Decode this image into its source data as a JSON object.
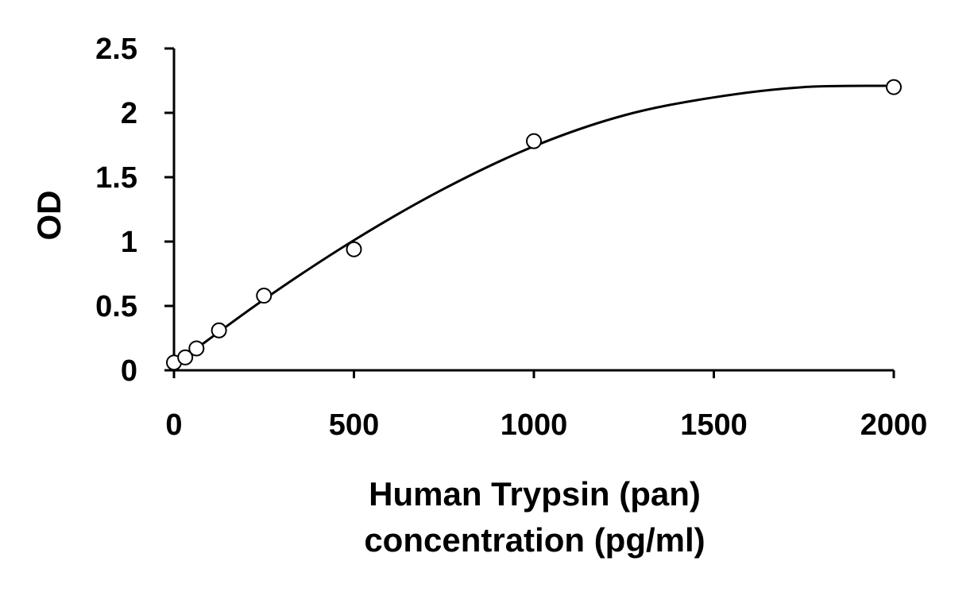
{
  "chart_data": {
    "type": "scatter",
    "title": "",
    "ylabel": "OD",
    "xlabel_lines": [
      "Human Trypsin (pan)",
      "concentration (pg/ml)"
    ],
    "xlim": [
      0,
      2000
    ],
    "ylim": [
      0,
      2.5
    ],
    "x_ticks": [
      0,
      500,
      1000,
      1500,
      2000
    ],
    "x_tick_labels": [
      "0",
      "500",
      "1000",
      "1500",
      "2000"
    ],
    "y_ticks": [
      0,
      0.5,
      1,
      1.5,
      2,
      2.5
    ],
    "y_tick_labels": [
      "0",
      "0.5",
      "1",
      "1.5",
      "2",
      "2.5"
    ],
    "grid": false,
    "legend": "none",
    "series": [
      {
        "marker": "open-circle",
        "points": [
          {
            "x": 0,
            "y": 0.06
          },
          {
            "x": 31.25,
            "y": 0.1
          },
          {
            "x": 62.5,
            "y": 0.17
          },
          {
            "x": 125,
            "y": 0.31
          },
          {
            "x": 250,
            "y": 0.58
          },
          {
            "x": 500,
            "y": 0.94
          },
          {
            "x": 1000,
            "y": 1.78
          },
          {
            "x": 2000,
            "y": 2.2
          }
        ]
      }
    ],
    "fit_curve": {
      "type": "polynomial-2",
      "points": [
        {
          "x": 0,
          "y": 0.04
        },
        {
          "x": 250,
          "y": 0.55
        },
        {
          "x": 500,
          "y": 1.01
        },
        {
          "x": 750,
          "y": 1.41
        },
        {
          "x": 1000,
          "y": 1.74
        },
        {
          "x": 1250,
          "y": 1.98
        },
        {
          "x": 1500,
          "y": 2.12
        },
        {
          "x": 1750,
          "y": 2.2
        },
        {
          "x": 2000,
          "y": 2.21
        }
      ]
    },
    "colors": {
      "axis": "#000000",
      "curve": "#000000",
      "marker_stroke": "#000000",
      "marker_fill": "#ffffff"
    }
  }
}
